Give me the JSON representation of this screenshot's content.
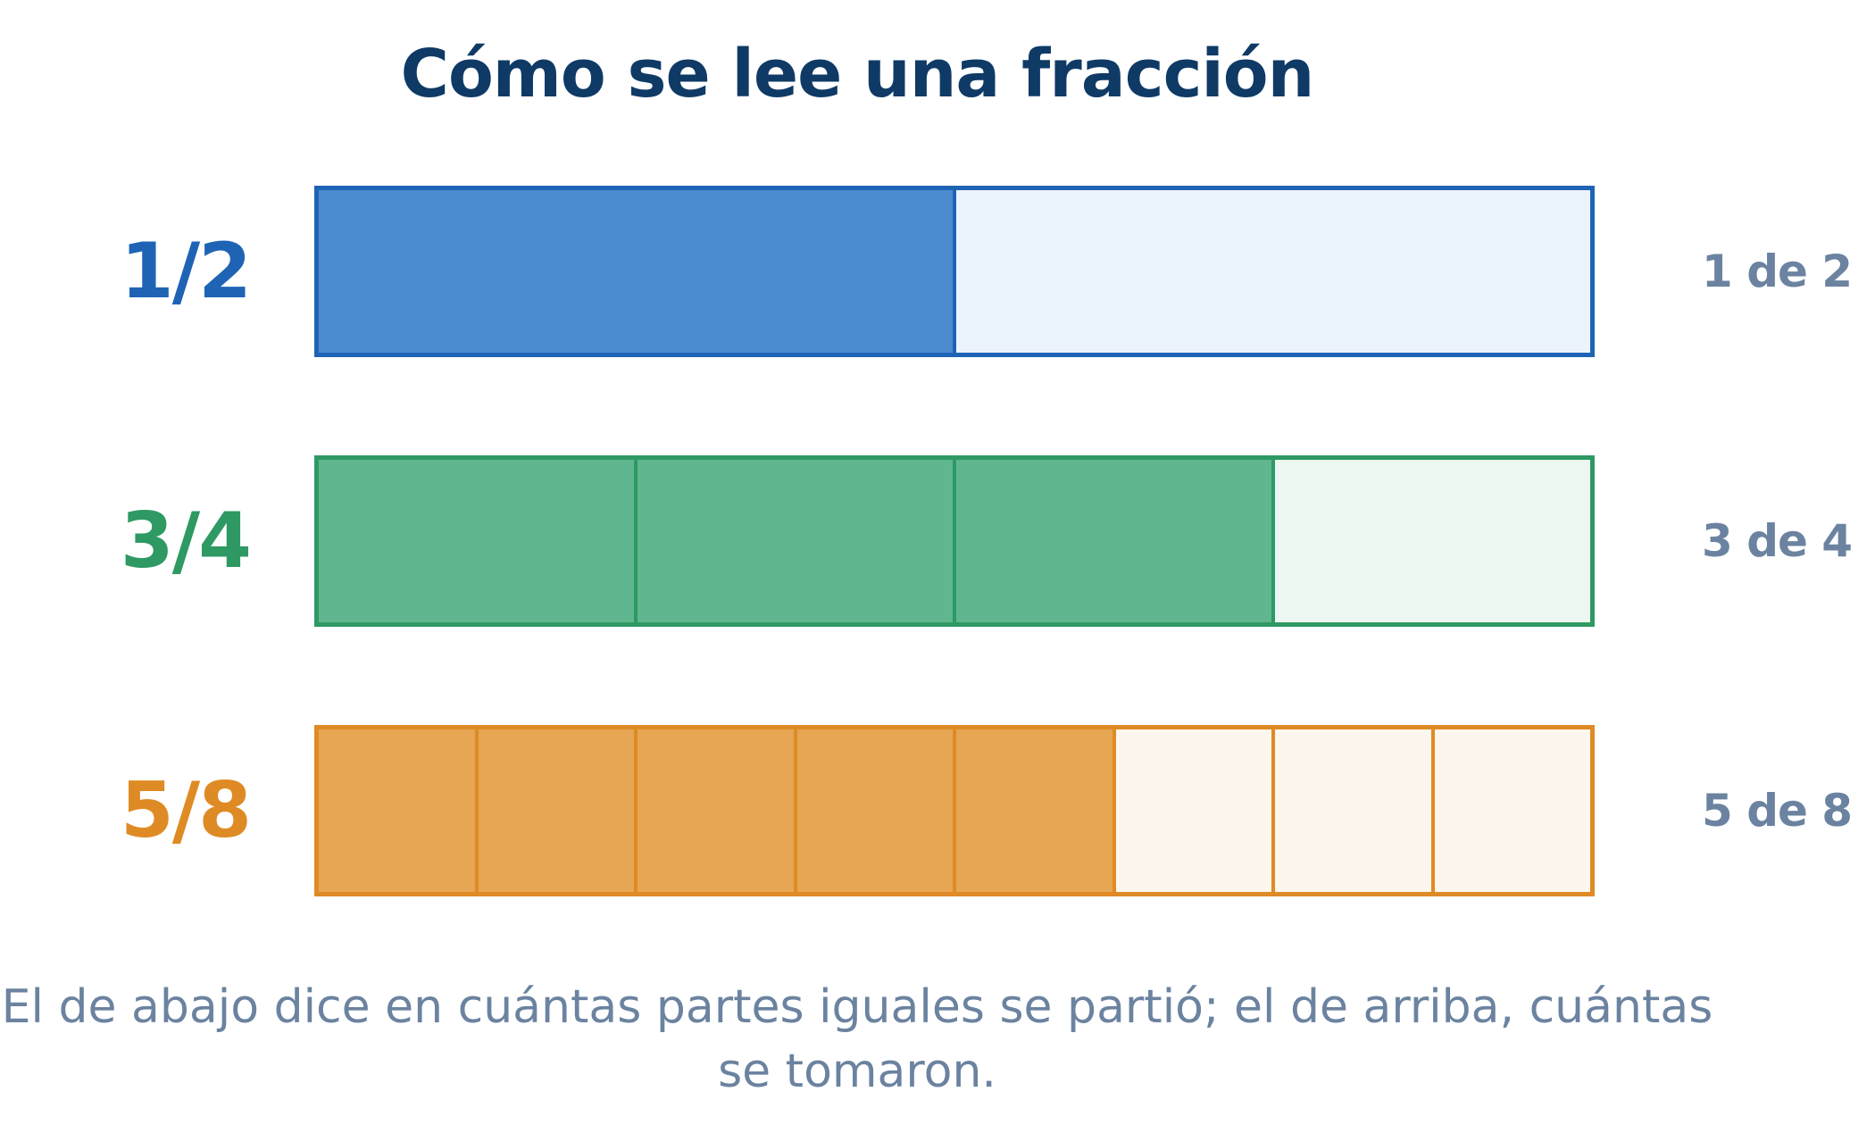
{
  "title": "Cómo se lee una fracción",
  "rows": [
    {
      "fraction": "1/2",
      "numerator": 1,
      "denominator": 2,
      "reading": "1 de 2",
      "color": "#1f63b5",
      "fill": "#4b8bcf",
      "empty": "#ebf3fb"
    },
    {
      "fraction": "3/4",
      "numerator": 3,
      "denominator": 4,
      "reading": "3 de 4",
      "color": "#2e9963",
      "fill": "#60b68f",
      "empty": "#ecf7f1"
    },
    {
      "fraction": "5/8",
      "numerator": 5,
      "denominator": 8,
      "reading": "5 de 8",
      "color": "#df8b25",
      "fill": "#e6a653",
      "empty": "#fdf6ec"
    }
  ],
  "caption": "El de abajo dice en cuántas partes iguales se partió; el de arriba, cuántas se tomaron."
}
